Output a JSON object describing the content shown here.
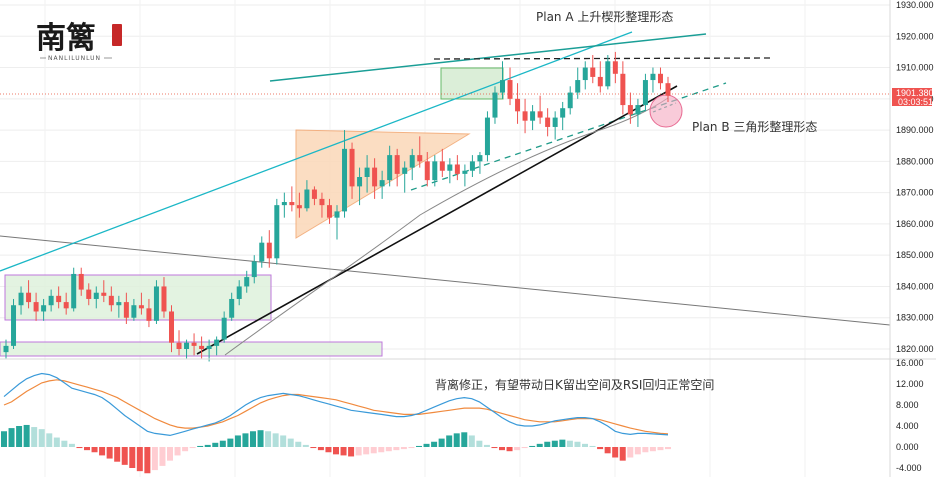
{
  "chart_data": {
    "type": "candlestick",
    "annotations": {
      "plan_a": "Plan A 上升楔形整理形态",
      "plan_b": "Plan B  三角形整理形态",
      "macd_note": "背离修正，有望带动日K留出空间及RSI回归正常空间"
    },
    "logo": {
      "text_cn": "南篱",
      "text_en": "NANLILUNLUN"
    },
    "price_axis": {
      "ticks": [
        1930,
        1920,
        1910,
        1900,
        1890,
        1880,
        1870,
        1860,
        1850,
        1840,
        1830,
        1820
      ],
      "tick_labels": [
        "1930.000",
        "1920.000",
        "1910.000",
        "1900.000",
        "1890.000",
        "1880.000",
        "1870.000",
        "1860.000",
        "1850.000",
        "1840.000",
        "1830.000",
        "1820.000"
      ],
      "range": [
        1815,
        1932
      ]
    },
    "current_price": {
      "value": "1901.380",
      "countdown": "03:03:51"
    },
    "indicator_axis": {
      "ticks": [
        16,
        12,
        8,
        4,
        0,
        -4
      ],
      "tick_labels": [
        "16.000",
        "12.000",
        "8.000",
        "4.000",
        "0.000",
        "-4.000"
      ],
      "range": [
        -5.5,
        17
      ]
    },
    "candles": [
      [
        1819,
        1823,
        1817,
        1821
      ],
      [
        1821,
        1836,
        1820,
        1834
      ],
      [
        1834,
        1840,
        1831,
        1838
      ],
      [
        1838,
        1842,
        1833,
        1835
      ],
      [
        1835,
        1838,
        1829,
        1832
      ],
      [
        1832,
        1836,
        1829,
        1834
      ],
      [
        1834,
        1839,
        1832,
        1837
      ],
      [
        1837,
        1840,
        1833,
        1835
      ],
      [
        1835,
        1838,
        1831,
        1833
      ],
      [
        1833,
        1846,
        1832,
        1844
      ],
      [
        1844,
        1846,
        1837,
        1839
      ],
      [
        1839,
        1841,
        1834,
        1836
      ],
      [
        1836,
        1840,
        1833,
        1838
      ],
      [
        1838,
        1842,
        1835,
        1837
      ],
      [
        1837,
        1840,
        1832,
        1834
      ],
      [
        1834,
        1837,
        1830,
        1835
      ],
      [
        1835,
        1838,
        1828,
        1830
      ],
      [
        1830,
        1836,
        1829,
        1834
      ],
      [
        1834,
        1838,
        1831,
        1833
      ],
      [
        1833,
        1836,
        1827,
        1829
      ],
      [
        1829,
        1842,
        1828,
        1840
      ],
      [
        1840,
        1843,
        1830,
        1832
      ],
      [
        1832,
        1834,
        1819,
        1822
      ],
      [
        1822,
        1826,
        1818,
        1820
      ],
      [
        1820,
        1823,
        1817,
        1822
      ],
      [
        1822,
        1825,
        1818,
        1821
      ],
      [
        1821,
        1824,
        1817,
        1820
      ],
      [
        1820,
        1823,
        1816,
        1821
      ],
      [
        1821,
        1824,
        1818,
        1823
      ],
      [
        1823,
        1832,
        1822,
        1830
      ],
      [
        1830,
        1838,
        1829,
        1836
      ],
      [
        1836,
        1842,
        1834,
        1840
      ],
      [
        1840,
        1845,
        1838,
        1843
      ],
      [
        1843,
        1850,
        1841,
        1848
      ],
      [
        1848,
        1856,
        1846,
        1854
      ],
      [
        1854,
        1858,
        1846,
        1849
      ],
      [
        1849,
        1868,
        1847,
        1866
      ],
      [
        1866,
        1870,
        1862,
        1867
      ],
      [
        1867,
        1872,
        1864,
        1866
      ],
      [
        1866,
        1870,
        1862,
        1865
      ],
      [
        1865,
        1874,
        1864,
        1871
      ],
      [
        1871,
        1872,
        1866,
        1868
      ],
      [
        1868,
        1870,
        1862,
        1866
      ],
      [
        1866,
        1868,
        1860,
        1862
      ],
      [
        1862,
        1866,
        1855,
        1864
      ],
      [
        1864,
        1890,
        1862,
        1884
      ],
      [
        1884,
        1886,
        1868,
        1872
      ],
      [
        1872,
        1878,
        1866,
        1875
      ],
      [
        1875,
        1882,
        1870,
        1878
      ],
      [
        1878,
        1881,
        1868,
        1872
      ],
      [
        1872,
        1877,
        1868,
        1874
      ],
      [
        1874,
        1885,
        1872,
        1882
      ],
      [
        1882,
        1884,
        1872,
        1876
      ],
      [
        1876,
        1880,
        1870,
        1878
      ],
      [
        1878,
        1884,
        1874,
        1882
      ],
      [
        1882,
        1888,
        1878,
        1880
      ],
      [
        1880,
        1883,
        1872,
        1874
      ],
      [
        1874,
        1882,
        1872,
        1880
      ],
      [
        1880,
        1884,
        1875,
        1877
      ],
      [
        1877,
        1881,
        1873,
        1879
      ],
      [
        1879,
        1882,
        1874,
        1876
      ],
      [
        1876,
        1879,
        1872,
        1877
      ],
      [
        1877,
        1882,
        1875,
        1880
      ],
      [
        1880,
        1883,
        1876,
        1882
      ],
      [
        1882,
        1896,
        1880,
        1894
      ],
      [
        1894,
        1904,
        1892,
        1902
      ],
      [
        1902,
        1912,
        1900,
        1906
      ],
      [
        1906,
        1910,
        1898,
        1900
      ],
      [
        1900,
        1905,
        1892,
        1896
      ],
      [
        1896,
        1900,
        1889,
        1893
      ],
      [
        1893,
        1898,
        1890,
        1896
      ],
      [
        1896,
        1901,
        1892,
        1894
      ],
      [
        1894,
        1897,
        1888,
        1891
      ],
      [
        1891,
        1896,
        1887,
        1894
      ],
      [
        1894,
        1899,
        1890,
        1897
      ],
      [
        1897,
        1904,
        1895,
        1902
      ],
      [
        1902,
        1910,
        1900,
        1906
      ],
      [
        1906,
        1912,
        1903,
        1910
      ],
      [
        1910,
        1914,
        1905,
        1907
      ],
      [
        1907,
        1912,
        1902,
        1904
      ],
      [
        1904,
        1914,
        1903,
        1912
      ],
      [
        1912,
        1915,
        1905,
        1908
      ],
      [
        1908,
        1912,
        1895,
        1898
      ],
      [
        1898,
        1902,
        1892,
        1895
      ],
      [
        1895,
        1900,
        1891,
        1898
      ],
      [
        1898,
        1908,
        1896,
        1906
      ],
      [
        1906,
        1910,
        1902,
        1908
      ],
      [
        1908,
        1910,
        1903,
        1905
      ],
      [
        1905,
        1907,
        1899,
        1901
      ]
    ],
    "macd": {
      "dif": [
        9.6,
        10.8,
        12.0,
        13.0,
        13.6,
        14.0,
        13.8,
        13.2,
        12.2,
        11.2,
        10.8,
        10.4,
        10.0,
        9.4,
        8.4,
        7.2,
        6.0,
        5.0,
        4.0,
        3.0,
        2.6,
        2.4,
        2.2,
        2.6,
        3.0,
        3.4,
        3.8,
        4.2,
        4.6,
        5.2,
        6.0,
        7.0,
        8.0,
        8.8,
        9.4,
        9.8,
        10.0,
        10.2,
        10.0,
        9.8,
        9.4,
        9.0,
        8.6,
        8.2,
        7.8,
        7.4,
        7.0,
        6.8,
        6.6,
        6.4,
        6.2,
        6.0,
        5.8,
        5.8,
        6.0,
        6.4,
        7.0,
        7.6,
        8.2,
        8.8,
        9.2,
        9.4,
        9.2,
        8.6,
        7.6,
        6.6,
        5.6,
        4.8,
        4.2,
        4.0,
        4.0,
        4.2,
        4.6,
        5.0,
        5.2,
        5.4,
        5.6,
        5.6,
        5.4,
        4.8,
        4.0,
        3.0,
        2.6,
        2.4,
        2.6,
        2.6,
        2.5,
        2.4,
        2.3
      ],
      "dea": [
        8.0,
        8.6,
        9.6,
        10.6,
        11.4,
        12.2,
        12.6,
        12.8,
        12.6,
        12.2,
        11.8,
        11.4,
        11.0,
        10.6,
        10.0,
        9.4,
        8.6,
        7.8,
        7.0,
        6.2,
        5.4,
        4.8,
        4.2,
        3.8,
        3.6,
        3.6,
        3.8,
        4.0,
        4.4,
        4.8,
        5.4,
        6.0,
        6.8,
        7.6,
        8.4,
        9.0,
        9.4,
        9.8,
        10.0,
        10.0,
        9.8,
        9.6,
        9.4,
        9.2,
        9.0,
        8.6,
        8.2,
        7.8,
        7.4,
        7.0,
        6.8,
        6.6,
        6.4,
        6.2,
        6.2,
        6.2,
        6.4,
        6.6,
        6.8,
        7.0,
        7.2,
        7.4,
        7.4,
        7.4,
        7.2,
        6.8,
        6.4,
        6.0,
        5.6,
        5.2,
        5.0,
        4.8,
        4.8,
        4.8,
        5.0,
        5.2,
        5.4,
        5.4,
        5.4,
        5.2,
        4.8,
        4.4,
        4.0,
        3.6,
        3.3,
        3.0,
        2.8,
        2.6,
        2.5
      ],
      "hist": [
        3.0,
        3.6,
        4.0,
        4.2,
        3.8,
        3.4,
        2.6,
        1.8,
        1.2,
        0.6,
        -0.2,
        -0.6,
        -1.0,
        -1.6,
        -2.2,
        -2.8,
        -3.4,
        -4.0,
        -4.6,
        -5.0,
        -4.4,
        -3.6,
        -2.6,
        -1.6,
        -0.8,
        -0.2,
        0.2,
        0.4,
        0.8,
        1.2,
        1.6,
        2.2,
        2.6,
        3.0,
        3.2,
        3.0,
        2.6,
        2.2,
        1.6,
        1.0,
        0.4,
        -0.2,
        -0.6,
        -1.0,
        -1.4,
        -1.6,
        -1.8,
        -1.6,
        -1.4,
        -1.2,
        -1.0,
        -0.8,
        -0.6,
        -0.4,
        -0.2,
        0.2,
        0.6,
        1.0,
        1.6,
        2.2,
        2.6,
        2.8,
        2.2,
        1.2,
        0.4,
        -0.2,
        -0.6,
        -0.8,
        -0.6,
        -0.2,
        0.2,
        0.6,
        1.0,
        1.2,
        1.4,
        1.2,
        1.0,
        0.6,
        0.2,
        -0.4,
        -1.2,
        -2.0,
        -2.6,
        -2.0,
        -1.4,
        -1.0,
        -0.8,
        -0.6,
        -0.4
      ]
    }
  }
}
